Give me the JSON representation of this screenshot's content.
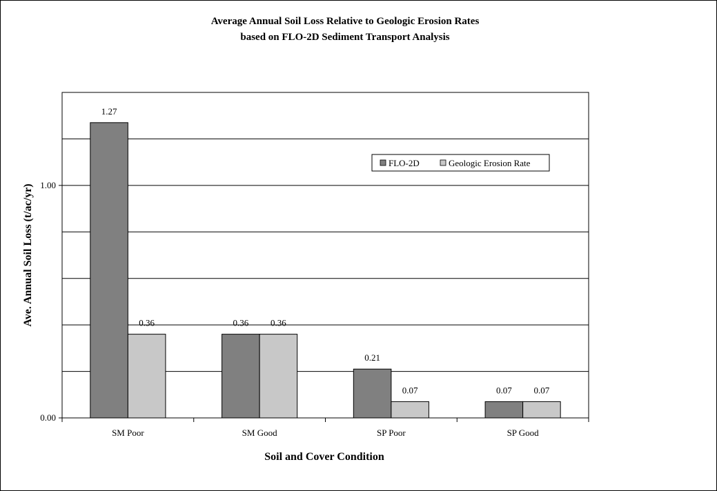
{
  "chart_data": {
    "type": "bar",
    "title": "Average Annual Soil Loss Relative to Geologic Erosion Rates",
    "subtitle": "based on FLO-2D Sediment Transport Analysis",
    "xlabel": "Soil and Cover Condition",
    "ylabel": "Ave. Annual Soil Loss (t/ac/yr)",
    "categories": [
      "SM Poor",
      "SM Good",
      "SP Poor",
      "SP Good"
    ],
    "series": [
      {
        "name": "FLO-2D",
        "values": [
          1.27,
          0.36,
          0.21,
          0.07
        ],
        "labels": [
          "1.27",
          "0.36",
          "0.21",
          "0.07"
        ],
        "color": "#808080"
      },
      {
        "name": "Geologic Erosion Rate",
        "values": [
          0.36,
          0.36,
          0.07,
          0.07
        ],
        "labels": [
          "0.36",
          "0.36",
          "0.07",
          "0.07"
        ],
        "color": "#c8c8c8"
      }
    ],
    "ylim": [
      0,
      1.4
    ],
    "yticks": [
      0,
      1
    ],
    "ytick_labels": [
      "0.00",
      "1.00"
    ],
    "gridlines": [
      0.2,
      0.4,
      0.6,
      0.8,
      1.0,
      1.2
    ],
    "grid": true,
    "legend_position": "top-right"
  }
}
